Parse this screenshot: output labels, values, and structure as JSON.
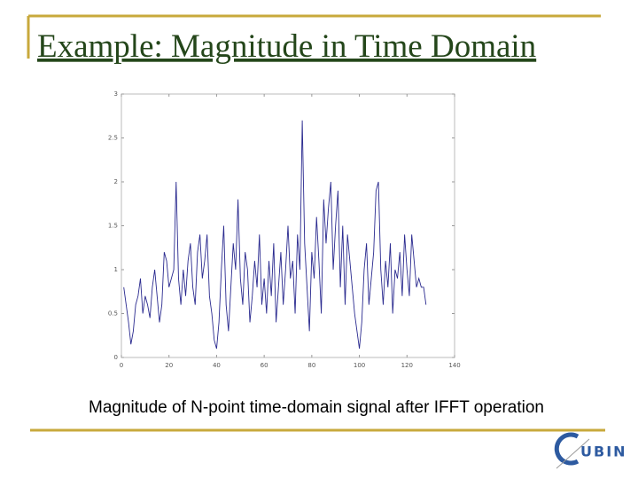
{
  "chart_data": {
    "type": "line",
    "title": "Example: Magnitude in Time Domain",
    "caption": "Magnitude of N-point time-domain signal after IFFT operation",
    "color": "#2a2a8f",
    "x": [
      1,
      2,
      3,
      4,
      5,
      6,
      7,
      8,
      9,
      10,
      11,
      12,
      13,
      14,
      15,
      16,
      17,
      18,
      19,
      20,
      21,
      22,
      23,
      24,
      25,
      26,
      27,
      28,
      29,
      30,
      31,
      32,
      33,
      34,
      35,
      36,
      37,
      38,
      39,
      40,
      41,
      42,
      43,
      44,
      45,
      46,
      47,
      48,
      49,
      50,
      51,
      52,
      53,
      54,
      55,
      56,
      57,
      58,
      59,
      60,
      61,
      62,
      63,
      64,
      65,
      66,
      67,
      68,
      69,
      70,
      71,
      72,
      73,
      74,
      75,
      76,
      77,
      78,
      79,
      80,
      81,
      82,
      83,
      84,
      85,
      86,
      87,
      88,
      89,
      90,
      91,
      92,
      93,
      94,
      95,
      96,
      97,
      98,
      99,
      100,
      101,
      102,
      103,
      104,
      105,
      106,
      107,
      108,
      109,
      110,
      111,
      112,
      113,
      114,
      115,
      116,
      117,
      118,
      119,
      120,
      121,
      122,
      123,
      124,
      125,
      126,
      127,
      128
    ],
    "values": [
      0.8,
      0.6,
      0.4,
      0.15,
      0.3,
      0.6,
      0.7,
      0.9,
      0.5,
      0.7,
      0.6,
      0.45,
      0.8,
      1.0,
      0.7,
      0.4,
      0.6,
      1.2,
      1.1,
      0.8,
      0.9,
      1.0,
      2.0,
      0.9,
      0.6,
      1.0,
      0.7,
      1.1,
      1.3,
      0.8,
      0.6,
      1.2,
      1.4,
      0.9,
      1.1,
      1.4,
      0.7,
      0.5,
      0.2,
      0.1,
      0.4,
      1.0,
      1.5,
      0.6,
      0.3,
      0.8,
      1.3,
      1.0,
      1.8,
      0.9,
      0.6,
      1.2,
      1.0,
      0.4,
      0.7,
      1.1,
      0.8,
      1.4,
      0.6,
      0.9,
      0.5,
      1.1,
      0.7,
      1.3,
      0.4,
      0.8,
      1.2,
      0.6,
      1.0,
      1.5,
      0.9,
      1.1,
      0.5,
      1.4,
      1.0,
      2.7,
      1.3,
      0.8,
      0.3,
      1.2,
      0.9,
      1.6,
      1.1,
      0.5,
      1.8,
      1.3,
      1.7,
      2.0,
      1.0,
      1.5,
      1.9,
      0.8,
      1.5,
      0.6,
      1.4,
      1.1,
      0.8,
      0.5,
      0.3,
      0.1,
      0.4,
      1.0,
      1.3,
      0.6,
      0.9,
      1.2,
      1.9,
      2.0,
      1.0,
      0.6,
      1.1,
      0.8,
      1.3,
      0.5,
      1.0,
      0.9,
      1.2,
      0.7,
      1.4,
      1.0,
      0.7,
      1.4,
      1.1,
      0.8,
      0.9,
      0.8,
      0.8,
      0.6
    ],
    "xlim": [
      0,
      140
    ],
    "xticks": [
      0,
      20,
      40,
      60,
      80,
      100,
      120,
      140
    ],
    "ylim": [
      0,
      3
    ],
    "yticks": [
      0,
      0.5,
      1,
      1.5,
      2,
      2.5,
      3
    ]
  },
  "logo": {
    "text": "UBIN"
  }
}
